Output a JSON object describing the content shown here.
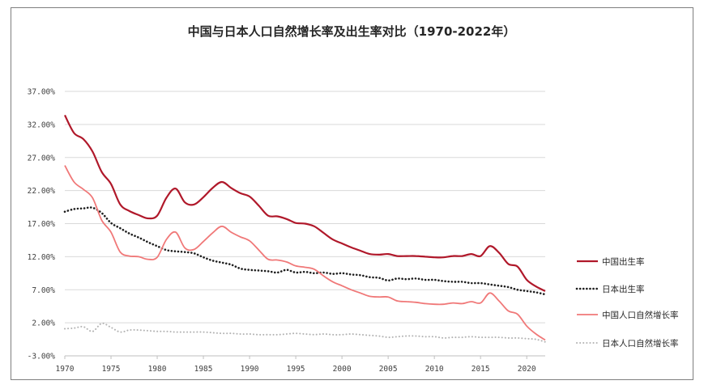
{
  "chart_data": {
    "type": "line",
    "title": "中国与日本人口自然增长率及出生率对比（1970-2022年）",
    "xlabel": "",
    "ylabel": "",
    "xlim": [
      1970,
      2022
    ],
    "ylim": [
      -3,
      37
    ],
    "y_ticks": [
      -3,
      2,
      7,
      12,
      17,
      22,
      27,
      32,
      37
    ],
    "y_tick_labels": [
      "-3.00%",
      "2.00%",
      "7.00%",
      "12.00%",
      "17.00%",
      "22.00%",
      "27.00%",
      "32.00%",
      "37.00%"
    ],
    "x_ticks": [
      1970,
      1975,
      1980,
      1985,
      1990,
      1995,
      2000,
      2005,
      2010,
      2015,
      2020
    ],
    "x_tick_labels": [
      "1970",
      "1975",
      "1980",
      "1985",
      "1990",
      "1995",
      "2000",
      "2005",
      "2010",
      "2015",
      "2020"
    ],
    "grid": true,
    "legend_position": "right",
    "series": [
      {
        "name": "中国出生率",
        "color": "#b0182a",
        "style": "solid",
        "x": [
          1970,
          1971,
          1972,
          1973,
          1974,
          1975,
          1976,
          1977,
          1978,
          1979,
          1980,
          1981,
          1982,
          1983,
          1984,
          1985,
          1986,
          1987,
          1988,
          1989,
          1990,
          1991,
          1992,
          1993,
          1994,
          1995,
          1996,
          1997,
          1998,
          1999,
          2000,
          2001,
          2002,
          2003,
          2004,
          2005,
          2006,
          2007,
          2008,
          2009,
          2010,
          2011,
          2012,
          2013,
          2014,
          2015,
          2016,
          2017,
          2018,
          2019,
          2020,
          2021,
          2022
        ],
        "values": [
          33.4,
          30.7,
          29.8,
          27.9,
          24.8,
          23.0,
          19.9,
          18.9,
          18.3,
          17.8,
          18.2,
          20.9,
          22.3,
          20.2,
          19.9,
          21.0,
          22.4,
          23.3,
          22.4,
          21.6,
          21.1,
          19.7,
          18.2,
          18.1,
          17.7,
          17.1,
          17.0,
          16.6,
          15.6,
          14.6,
          14.0,
          13.4,
          12.9,
          12.4,
          12.3,
          12.4,
          12.1,
          12.1,
          12.1,
          12.0,
          11.9,
          11.9,
          12.1,
          12.1,
          12.4,
          12.1,
          13.6,
          12.6,
          10.9,
          10.5,
          8.5,
          7.5,
          6.8
        ]
      },
      {
        "name": "日本出生率",
        "color": "#1f1f1f",
        "style": "dotted",
        "x": [
          1970,
          1971,
          1972,
          1973,
          1974,
          1975,
          1976,
          1977,
          1978,
          1979,
          1980,
          1981,
          1982,
          1983,
          1984,
          1985,
          1986,
          1987,
          1988,
          1989,
          1990,
          1991,
          1992,
          1993,
          1994,
          1995,
          1996,
          1997,
          1998,
          1999,
          2000,
          2001,
          2002,
          2003,
          2004,
          2005,
          2006,
          2007,
          2008,
          2009,
          2010,
          2011,
          2012,
          2013,
          2014,
          2015,
          2016,
          2017,
          2018,
          2019,
          2020,
          2021,
          2022
        ],
        "values": [
          18.8,
          19.2,
          19.3,
          19.4,
          18.6,
          17.1,
          16.3,
          15.5,
          14.9,
          14.2,
          13.6,
          13.0,
          12.8,
          12.7,
          12.5,
          11.9,
          11.4,
          11.1,
          10.8,
          10.2,
          10.0,
          9.9,
          9.8,
          9.6,
          10.0,
          9.6,
          9.7,
          9.5,
          9.6,
          9.4,
          9.5,
          9.3,
          9.2,
          8.9,
          8.8,
          8.4,
          8.7,
          8.6,
          8.7,
          8.5,
          8.5,
          8.3,
          8.2,
          8.2,
          8.0,
          8.0,
          7.8,
          7.6,
          7.4,
          7.0,
          6.8,
          6.6,
          6.3
        ]
      },
      {
        "name": "中国人口自然增长率",
        "color": "#f07878",
        "style": "solid",
        "x": [
          1970,
          1971,
          1972,
          1973,
          1974,
          1975,
          1976,
          1977,
          1978,
          1979,
          1980,
          1981,
          1982,
          1983,
          1984,
          1985,
          1986,
          1987,
          1988,
          1989,
          1990,
          1991,
          1992,
          1993,
          1994,
          1995,
          1996,
          1997,
          1998,
          1999,
          2000,
          2001,
          2002,
          2003,
          2004,
          2005,
          2006,
          2007,
          2008,
          2009,
          2010,
          2011,
          2012,
          2013,
          2014,
          2015,
          2016,
          2017,
          2018,
          2019,
          2020,
          2021,
          2022
        ],
        "values": [
          25.8,
          23.3,
          22.2,
          20.9,
          17.5,
          15.7,
          12.7,
          12.1,
          12.0,
          11.6,
          11.9,
          14.6,
          15.7,
          13.3,
          13.1,
          14.3,
          15.6,
          16.6,
          15.7,
          15.0,
          14.4,
          13.0,
          11.6,
          11.5,
          11.2,
          10.6,
          10.4,
          10.1,
          9.1,
          8.2,
          7.6,
          7.0,
          6.5,
          6.0,
          5.9,
          5.9,
          5.3,
          5.2,
          5.1,
          4.9,
          4.8,
          4.8,
          5.0,
          4.9,
          5.2,
          5.0,
          6.5,
          5.3,
          3.8,
          3.3,
          1.5,
          0.3,
          -0.6
        ]
      },
      {
        "name": "日本人口自然增长率",
        "color": "#b3b3b3",
        "style": "dotted",
        "x": [
          1970,
          1971,
          1972,
          1973,
          1974,
          1975,
          1976,
          1977,
          1978,
          1979,
          1980,
          1981,
          1982,
          1983,
          1984,
          1985,
          1986,
          1987,
          1988,
          1989,
          1990,
          1991,
          1992,
          1993,
          1994,
          1995,
          1996,
          1997,
          1998,
          1999,
          2000,
          2001,
          2002,
          2003,
          2004,
          2005,
          2006,
          2007,
          2008,
          2009,
          2010,
          2011,
          2012,
          2013,
          2014,
          2015,
          2016,
          2017,
          2018,
          2019,
          2020,
          2021,
          2022
        ],
        "values": [
          1.1,
          1.2,
          1.4,
          0.7,
          1.9,
          1.3,
          0.6,
          0.9,
          0.9,
          0.8,
          0.7,
          0.7,
          0.6,
          0.6,
          0.6,
          0.6,
          0.5,
          0.4,
          0.4,
          0.3,
          0.3,
          0.2,
          0.2,
          0.2,
          0.3,
          0.4,
          0.3,
          0.2,
          0.3,
          0.2,
          0.2,
          0.3,
          0.2,
          0.1,
          0.0,
          -0.2,
          -0.1,
          0.0,
          0.0,
          -0.1,
          -0.1,
          -0.3,
          -0.2,
          -0.2,
          -0.1,
          -0.2,
          -0.2,
          -0.2,
          -0.3,
          -0.3,
          -0.4,
          -0.5,
          -0.9
        ]
      }
    ]
  }
}
